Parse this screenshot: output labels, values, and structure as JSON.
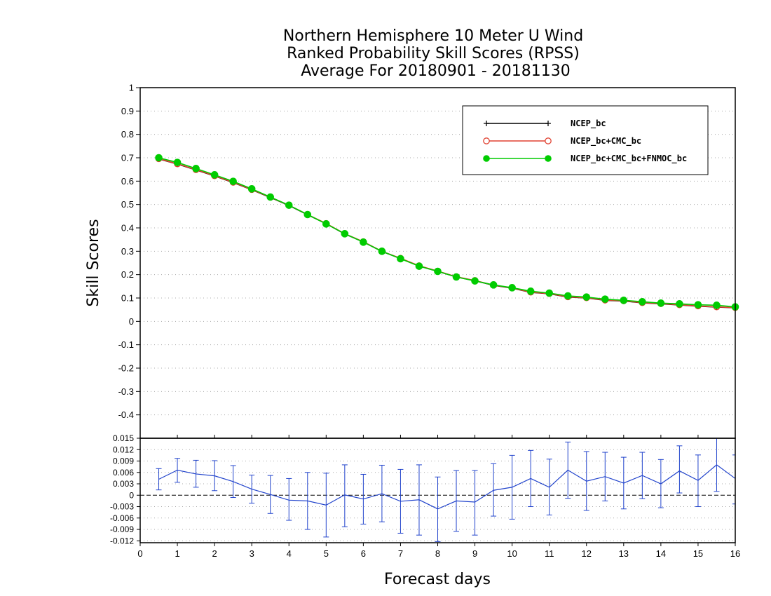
{
  "chart_data": {
    "type": "line",
    "title": [
      "Northern Hemisphere 10 Meter U Wind",
      "Ranked Probability Skill Scores (RPSS)",
      " Average For 20180901 - 20181130"
    ],
    "xlabel": "Forecast days",
    "ylabel": "Skill Scores",
    "xlim": [
      0,
      16
    ],
    "ylim": [
      -0.5,
      1
    ],
    "x_ticks": [
      "0",
      "1",
      "2",
      "3",
      "4",
      "5",
      "6",
      "7",
      "8",
      "9",
      "10",
      "11",
      "12",
      "13",
      "14",
      "15",
      "16"
    ],
    "y_ticks": [
      "-0.4",
      "-0.3",
      "-0.2",
      "-0.1",
      "0",
      "0.1",
      "0.2",
      "0.3",
      "0.4",
      "0.5",
      "0.6",
      "0.7",
      "0.8",
      "0.9",
      "1"
    ],
    "grid": true,
    "legend_position": "top-right",
    "x": [
      0.5,
      1,
      1.5,
      2,
      2.5,
      3,
      3.5,
      4,
      4.5,
      5,
      5.5,
      6,
      6.5,
      7,
      7.5,
      8,
      8.5,
      9,
      9.5,
      10,
      10.5,
      11,
      11.5,
      12,
      12.5,
      13,
      13.5,
      14,
      14.5,
      15,
      15.5,
      16
    ],
    "series": [
      {
        "name": "NCEP_bc",
        "color": "#000000",
        "marker": "plus",
        "values": [
          0.695,
          0.673,
          0.648,
          0.622,
          0.594,
          0.563,
          0.53,
          0.496,
          0.456,
          0.418,
          0.374,
          0.34,
          0.299,
          0.269,
          0.237,
          0.214,
          0.19,
          0.174,
          0.154,
          0.142,
          0.124,
          0.118,
          0.104,
          0.1,
          0.09,
          0.087,
          0.079,
          0.075,
          0.07,
          0.065,
          0.061,
          0.058
        ]
      },
      {
        "name": "NCEP_bc+CMC_bc",
        "color": "#e04030",
        "marker": "open-circle",
        "values": [
          0.696,
          0.674,
          0.649,
          0.623,
          0.595,
          0.564,
          0.531,
          0.497,
          0.457,
          0.419,
          0.375,
          0.341,
          0.3,
          0.27,
          0.238,
          0.215,
          0.191,
          0.175,
          0.155,
          0.143,
          0.125,
          0.119,
          0.105,
          0.101,
          0.091,
          0.088,
          0.08,
          0.076,
          0.071,
          0.066,
          0.062,
          0.059
        ]
      },
      {
        "name": "NCEP_bc+CMC_bc+FNMOC_bc",
        "color": "#00cc00",
        "marker": "filled-circle",
        "values": [
          0.7,
          0.68,
          0.654,
          0.627,
          0.599,
          0.567,
          0.532,
          0.497,
          0.457,
          0.417,
          0.375,
          0.339,
          0.3,
          0.268,
          0.236,
          0.214,
          0.19,
          0.173,
          0.156,
          0.144,
          0.129,
          0.121,
          0.109,
          0.104,
          0.095,
          0.09,
          0.084,
          0.078,
          0.075,
          0.071,
          0.069,
          0.062
        ]
      }
    ],
    "difference_panel": {
      "ylim": [
        -0.0125,
        0.015
      ],
      "y_ticks": [
        "-0.012",
        "-0.009",
        "-0.006",
        "-0.003",
        "0",
        "0.003",
        "0.006",
        "0.009",
        "0.012",
        "0.015"
      ],
      "color": "#2244cc",
      "mean": [
        0.0042,
        0.0066,
        0.0056,
        0.0051,
        0.0036,
        0.0016,
        0.0002,
        -0.0013,
        -0.0015,
        -0.0026,
        0.0001,
        -0.001,
        0.0004,
        -0.0016,
        -0.0012,
        -0.0036,
        -0.0015,
        -0.0018,
        0.0013,
        0.0021,
        0.0044,
        0.0021,
        0.0066,
        0.0037,
        0.0049,
        0.0032,
        0.0052,
        0.003,
        0.0064,
        0.0039,
        0.008,
        0.0044
      ],
      "lower": [
        0.0014,
        0.0034,
        0.0021,
        0.0012,
        -0.0006,
        -0.0021,
        -0.0048,
        -0.0066,
        -0.009,
        -0.011,
        -0.0083,
        -0.0076,
        -0.007,
        -0.01,
        -0.0105,
        -0.0122,
        -0.0095,
        -0.0105,
        -0.0055,
        -0.0063,
        -0.003,
        -0.0052,
        -0.0008,
        -0.004,
        -0.0015,
        -0.0036,
        -0.0009,
        -0.0033,
        0.0006,
        -0.003,
        0.001,
        -0.0023
      ],
      "upper": [
        0.007,
        0.0097,
        0.0092,
        0.0091,
        0.0078,
        0.0053,
        0.0052,
        0.0044,
        0.006,
        0.0058,
        0.008,
        0.0055,
        0.0079,
        0.0068,
        0.008,
        0.0048,
        0.0065,
        0.0065,
        0.0083,
        0.0105,
        0.0118,
        0.0095,
        0.014,
        0.0115,
        0.0113,
        0.01,
        0.0113,
        0.0094,
        0.013,
        0.0106,
        0.0151,
        0.0106
      ]
    }
  }
}
